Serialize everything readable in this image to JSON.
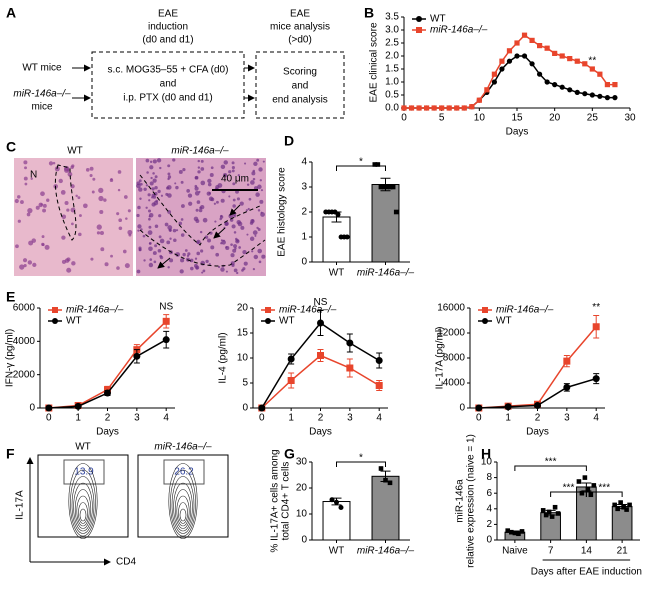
{
  "panel_labels": [
    "A",
    "B",
    "C",
    "D",
    "E",
    "F",
    "G",
    "H"
  ],
  "diagram": {
    "headers": [
      [
        "EAE",
        "induction",
        "(d0 and d1)"
      ],
      [
        "EAE",
        "mice analysis",
        "(>d0)"
      ]
    ],
    "groups": [
      [
        "WT mice"
      ],
      [
        "miR-146a–/–",
        "mice"
      ]
    ],
    "steps": [
      [
        "s.c. MOG35–55 + CFA (d0)",
        "and",
        "i.p. PTX (d0 and d1)"
      ],
      [
        "Scoring",
        "and",
        "end analysis"
      ]
    ]
  },
  "histology": {
    "labels": [
      "WT",
      "miR-146a–/–"
    ],
    "marker": "N",
    "scale_bar": "40 μm"
  },
  "flow": {
    "labels": [
      "WT",
      "miR-146a–/–"
    ],
    "gates": [
      "13.9",
      "26.2"
    ],
    "y_axis": "IL-17A",
    "x_axis": "CD4"
  },
  "chart_data": [
    {
      "type": "line",
      "ylabel": "EAE clinical score",
      "xlabel": "Days",
      "x": [
        0,
        1,
        2,
        3,
        4,
        5,
        6,
        7,
        8,
        9,
        10,
        11,
        12,
        13,
        14,
        15,
        16,
        17,
        18,
        19,
        20,
        21,
        22,
        23,
        24,
        25,
        26,
        27,
        28
      ],
      "series": [
        {
          "name": "WT",
          "color": "#000000",
          "marker": "circle",
          "values": [
            0,
            0,
            0,
            0,
            0,
            0,
            0,
            0,
            0,
            0.05,
            0.3,
            0.6,
            1.0,
            1.5,
            1.8,
            2.0,
            2.0,
            1.7,
            1.3,
            1.0,
            0.9,
            0.8,
            0.7,
            0.6,
            0.55,
            0.5,
            0.45,
            0.4,
            0.4
          ]
        },
        {
          "name": "miR-146a–/–",
          "color": "#e8452c",
          "marker": "square",
          "values": [
            0,
            0,
            0,
            0,
            0,
            0,
            0,
            0,
            0,
            0.05,
            0.3,
            0.7,
            1.3,
            1.8,
            2.2,
            2.5,
            2.8,
            2.6,
            2.4,
            2.3,
            2.1,
            2.0,
            1.9,
            1.8,
            1.7,
            1.5,
            1.3,
            0.9,
            0.9
          ]
        }
      ],
      "xlim": [
        0,
        30
      ],
      "xticks": [
        0,
        5,
        10,
        15,
        20,
        25,
        30
      ],
      "ylim": [
        0,
        3.5
      ],
      "yticks": [
        {
          "value": 0,
          "label": "0.0"
        },
        0.5,
        {
          "value": 1,
          "label": "1.0"
        },
        1.5,
        {
          "value": 2,
          "label": "2.0"
        },
        2.5,
        {
          "value": 3,
          "label": "3.0"
        },
        3.5
      ],
      "legend": "upper left",
      "annotations": [
        {
          "text": "**",
          "x": 25
        }
      ]
    },
    {
      "type": "bar",
      "ylabel": "EAE histology score",
      "categories": [
        "WT",
        "miR-146a–/–"
      ],
      "values": [
        1.8,
        3.1
      ],
      "errors": [
        0.2,
        0.25
      ],
      "points": [
        [
          2.0,
          2.0,
          2.0,
          2.0,
          1.9,
          1.0,
          1.0,
          1.0
        ],
        [
          3.9,
          3.9,
          3.0,
          3.0,
          3.0,
          3.0,
          3.0,
          2.0
        ]
      ],
      "colors": [
        "#ffffff",
        "#8c8c8c"
      ],
      "ylim": [
        0,
        4
      ],
      "yticks": [
        0,
        1,
        2,
        3,
        4
      ],
      "significance": [
        "*"
      ]
    },
    {
      "type": "line",
      "ylabel": "IFN-γ (pg/ml)",
      "xlabel": "Days",
      "x": [
        0,
        1,
        2,
        3,
        4
      ],
      "series": [
        {
          "name": "miR-146a–/–",
          "color": "#e8452c",
          "marker": "square",
          "values": [
            0,
            150,
            1100,
            3500,
            5200
          ],
          "errors": [
            50,
            80,
            200,
            300,
            400
          ]
        },
        {
          "name": "WT",
          "color": "#000000",
          "marker": "circle",
          "values": [
            0,
            100,
            900,
            3100,
            4100
          ],
          "errors": [
            50,
            80,
            150,
            400,
            500
          ]
        }
      ],
      "xlim": [
        -0.3,
        4.3
      ],
      "xticks": [
        0,
        1,
        2,
        3,
        4
      ],
      "ylim": [
        0,
        6000
      ],
      "yticks": [
        0,
        2000,
        4000,
        6000
      ],
      "legend": "upper left",
      "annotations": [
        {
          "text": "NS",
          "x": 4
        }
      ]
    },
    {
      "type": "line",
      "ylabel": "IL-4 (pg/ml)",
      "xlabel": "Days",
      "x": [
        0,
        1,
        2,
        3,
        4
      ],
      "series": [
        {
          "name": "miR-146a–/–",
          "color": "#e8452c",
          "marker": "square",
          "values": [
            0,
            5.5,
            10.5,
            8,
            4.5
          ],
          "errors": [
            0.3,
            1.5,
            1.2,
            1.8,
            1.0
          ]
        },
        {
          "name": "WT",
          "color": "#000000",
          "marker": "circle",
          "values": [
            0,
            9.8,
            17,
            13,
            9.5
          ],
          "errors": [
            0.3,
            1.0,
            2.5,
            1.8,
            1.5
          ]
        }
      ],
      "xlim": [
        -0.3,
        4.3
      ],
      "xticks": [
        0,
        1,
        2,
        3,
        4
      ],
      "ylim": [
        0,
        20
      ],
      "yticks": [
        0,
        5,
        10,
        15,
        20
      ],
      "legend": "upper left",
      "annotations": [
        {
          "text": "NS",
          "x": 2
        }
      ]
    },
    {
      "type": "line",
      "ylabel": "IL-17A (pg/ml)",
      "xlabel": "Days",
      "x": [
        0,
        1,
        2,
        3,
        4
      ],
      "series": [
        {
          "name": "miR-146a–/–",
          "color": "#e8452c",
          "marker": "square",
          "values": [
            0,
            300,
            600,
            7500,
            13000
          ],
          "errors": [
            100,
            200,
            300,
            900,
            1800
          ]
        },
        {
          "name": "WT",
          "color": "#000000",
          "marker": "circle",
          "values": [
            0,
            200,
            400,
            3300,
            4700
          ],
          "errors": [
            100,
            150,
            200,
            600,
            800
          ]
        }
      ],
      "xlim": [
        -0.3,
        4.3
      ],
      "xticks": [
        0,
        1,
        2,
        3,
        4
      ],
      "ylim": [
        0,
        16000
      ],
      "yticks": [
        0,
        4000,
        8000,
        12000,
        16000
      ],
      "legend": "upper left",
      "annotations": [
        {
          "text": "**",
          "x": 4
        }
      ]
    },
    {
      "type": "bar",
      "ylabel": [
        "% IL-17A+ cells among",
        "total CD4+ T cells"
      ],
      "categories": [
        "WT",
        "miR-146a–/–"
      ],
      "values": [
        14.8,
        24.5
      ],
      "errors": [
        1.3,
        2.0
      ],
      "points": [
        [
          15.5,
          14.5,
          12.5
        ],
        [
          27.5,
          23,
          22
        ]
      ],
      "colors": [
        "#ffffff",
        "#8c8c8c"
      ],
      "ylim": [
        0,
        30
      ],
      "yticks": [
        0,
        10,
        20,
        30
      ],
      "significance": [
        "*"
      ]
    },
    {
      "type": "bar",
      "ylabel": [
        "miR-146a",
        "relative expression (naive = 1)"
      ],
      "xlabel": "Days after EAE induction",
      "categories": [
        "Naive",
        "7",
        "14",
        "21"
      ],
      "values": [
        1.0,
        3.5,
        6.8,
        4.3
      ],
      "errors": [
        0.15,
        0.3,
        0.5,
        0.25
      ],
      "points": [
        [
          1.2,
          1.0,
          0.9,
          0.8,
          1.1
        ],
        [
          3.8,
          3.2,
          3.6,
          3.0,
          4.2,
          3.4
        ],
        [
          7.5,
          6.0,
          8.0,
          6.5,
          5.8,
          7.0
        ],
        [
          4.5,
          4.0,
          4.8,
          4.2,
          3.9,
          4.5
        ]
      ],
      "colors": [
        "#8c8c8c",
        "#8c8c8c",
        "#8c8c8c",
        "#8c8c8c"
      ],
      "ylim": [
        0,
        10
      ],
      "yticks": [
        0,
        2,
        4,
        6,
        8,
        10
      ],
      "significance": [
        "***",
        "***",
        "***"
      ]
    }
  ]
}
